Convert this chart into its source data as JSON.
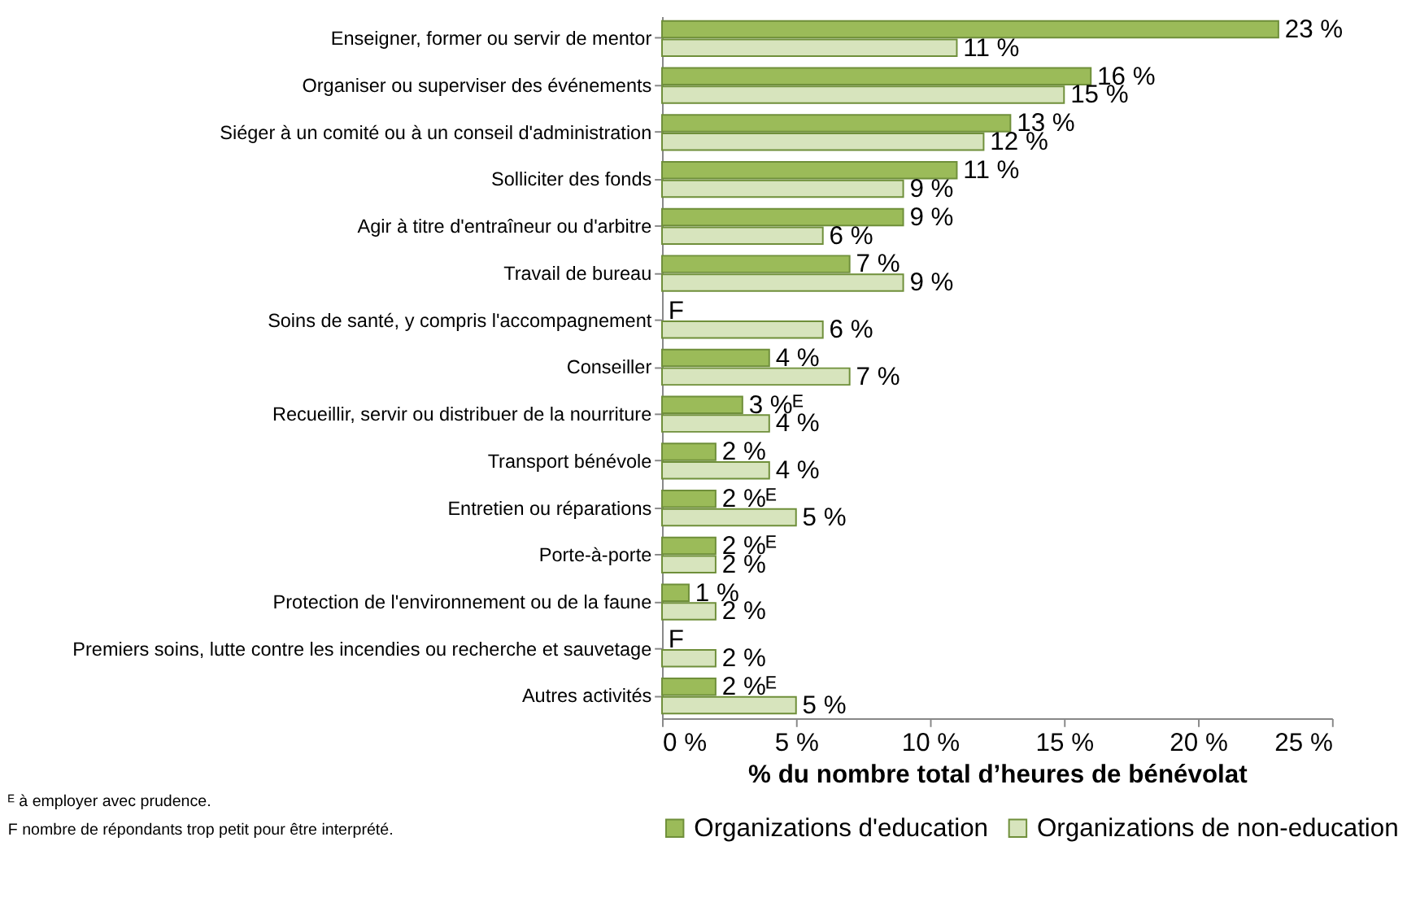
{
  "chart_data": {
    "type": "bar",
    "orientation": "horizontal",
    "categories": [
      "Enseigner, former ou servir de mentor",
      "Organiser ou superviser des événements",
      "Siéger à un comité ou à un conseil d'administration",
      "Solliciter des fonds",
      "Agir à titre d'entraîneur ou d'arbitre",
      "Travail de bureau",
      "Soins de santé, y compris l'accompagnement",
      "Conseiller",
      "Recueillir, servir ou distribuer de la nourriture",
      "Transport bénévole",
      "Entretien ou réparations",
      "Porte-à-porte",
      "Protection de l'environnement ou de la faune",
      "Premiers soins, lutte contre les incendies ou recherche et sauvetage",
      "Autres activités"
    ],
    "series": [
      {
        "name": "Organizations d'education",
        "color": "#9bbb59",
        "values": [
          23,
          16,
          13,
          11,
          9,
          7,
          null,
          4,
          3,
          2,
          2,
          2,
          1,
          null,
          2
        ],
        "value_labels": [
          "23 %",
          "16 %",
          "13 %",
          "11 %",
          "9 %",
          "7 %",
          "F",
          "4 %",
          "3 %ᴱ",
          "2 %",
          "2 %ᴱ",
          "2 %ᴱ",
          "1 %",
          "F",
          "2 %ᴱ"
        ]
      },
      {
        "name": "Organizations de non-education",
        "color": "#d7e4bd",
        "values": [
          11,
          15,
          12,
          9,
          6,
          9,
          6,
          7,
          4,
          4,
          5,
          2,
          2,
          2,
          5
        ],
        "value_labels": [
          "11 %",
          "15 %",
          "12 %",
          "9 %",
          "6 %",
          "9 %",
          "6 %",
          "7 %",
          "4 %",
          "4 %",
          "5 %",
          "2 %",
          "2 %",
          "2 %",
          "5 %"
        ]
      }
    ],
    "xlim": [
      0,
      25
    ],
    "xticks": [
      {
        "value": 0,
        "label": "0 %"
      },
      {
        "value": 5,
        "label": "5 %"
      },
      {
        "value": 10,
        "label": "10 %"
      },
      {
        "value": 15,
        "label": "15 %"
      },
      {
        "value": 20,
        "label": "20 %"
      },
      {
        "value": 25,
        "label": "25 %"
      }
    ],
    "xlabel": "% du nombre total d’heures de bénévolat",
    "legend": "bottom",
    "grid": false,
    "annotations": [
      "ᴱ à employer avec prudence.",
      "F nombre de répondants trop petit pour être interprété."
    ]
  }
}
